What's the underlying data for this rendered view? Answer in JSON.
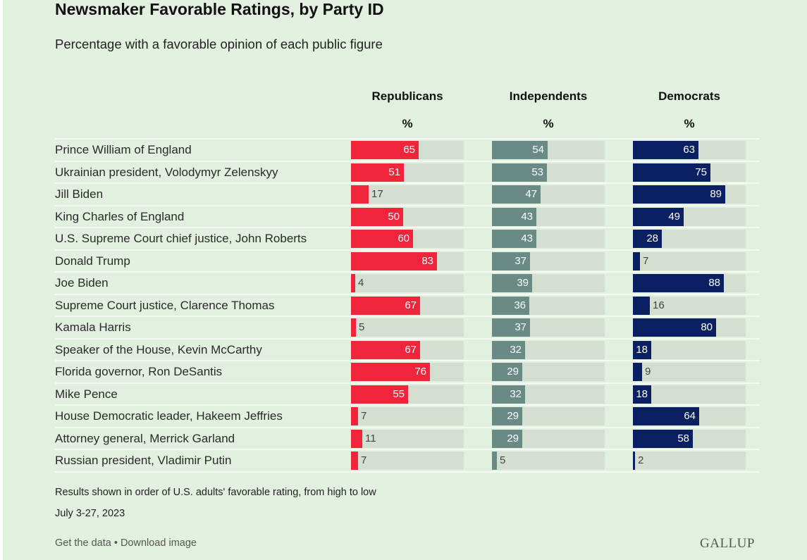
{
  "header": {
    "title": "Newsmaker Favorable Ratings, by Party ID",
    "subtitle": "Percentage with a favorable opinion of each public figure"
  },
  "footer": {
    "note": "Results shown in order of U.S. adults' favorable rating, from high to low",
    "date": "July 3-27, 2023",
    "get_data": "Get the data",
    "separator": "•",
    "download": "Download image",
    "brand": "GALLUP"
  },
  "colors": {
    "republicans": "#f0243a",
    "independents": "#6a8a86",
    "democrats": "#0b2063",
    "track": "#d5dfd1",
    "background": "#e2f0e0"
  },
  "chart_data": {
    "type": "bar",
    "orientation": "horizontal",
    "title": "Newsmaker Favorable Ratings, by Party ID",
    "subtitle": "Percentage with a favorable opinion of each public figure",
    "unit_label": "%",
    "xlim": [
      0,
      100
    ],
    "categories": [
      "Prince William of England",
      "Ukrainian president, Volodymyr Zelenskyy",
      "Jill Biden",
      "King Charles of England",
      "U.S. Supreme Court chief justice, John Roberts",
      "Donald Trump",
      "Joe Biden",
      "Supreme Court justice, Clarence Thomas",
      "Kamala Harris",
      "Speaker of the House, Kevin McCarthy",
      "Florida governor, Ron DeSantis",
      "Mike Pence",
      "House Democratic leader, Hakeem Jeffries",
      "Attorney general, Merrick Garland",
      "Russian president, Vladimir Putin"
    ],
    "series": [
      {
        "name": "Republicans",
        "unit": "%",
        "values": [
          65,
          51,
          17,
          50,
          60,
          83,
          4,
          67,
          5,
          67,
          76,
          55,
          7,
          11,
          7
        ]
      },
      {
        "name": "Independents",
        "unit": "%",
        "values": [
          54,
          53,
          47,
          43,
          43,
          37,
          39,
          36,
          37,
          32,
          29,
          32,
          29,
          29,
          5
        ]
      },
      {
        "name": "Democrats",
        "unit": "%",
        "values": [
          63,
          75,
          89,
          49,
          28,
          7,
          88,
          16,
          80,
          18,
          9,
          18,
          64,
          58,
          2
        ]
      }
    ],
    "legend": "column headers",
    "grid": false
  }
}
